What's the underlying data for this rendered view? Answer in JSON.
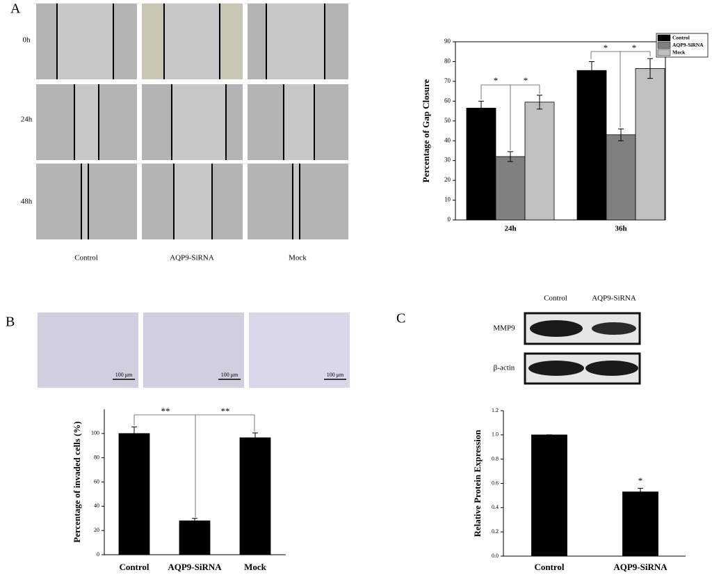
{
  "panel_labels": [
    "A",
    "B",
    "C"
  ],
  "wound_healing": {
    "time_labels": [
      "0h",
      "24h",
      "48h"
    ],
    "group_labels": [
      "Control",
      "AQP9-SiRNA",
      "Mock"
    ]
  },
  "transwell": {
    "scale_bars": [
      "100 μm",
      "100 μm",
      "100 μm"
    ]
  },
  "western_blot": {
    "lanes": [
      "Control",
      "AQP9-SiRNA"
    ],
    "bands": [
      "MMP9",
      "β-actin"
    ]
  },
  "chart_data": [
    {
      "type": "bar",
      "y_label": "Percentage of Gap Closure",
      "categories": [
        "24h",
        "36h"
      ],
      "series": [
        {
          "name": "Control",
          "color": "#000000",
          "values": [
            56.5,
            75.5
          ],
          "errors": [
            3.5,
            4.5
          ]
        },
        {
          "name": "AQP9-SiRNA",
          "color": "#808080",
          "values": [
            32,
            43
          ],
          "errors": [
            2.5,
            3
          ]
        },
        {
          "name": "Mock",
          "color": "#c0c0c0",
          "values": [
            59.5,
            76.5
          ],
          "errors": [
            3.5,
            5
          ]
        }
      ],
      "ylim": [
        0,
        90
      ],
      "yticks": [
        0,
        10,
        20,
        30,
        40,
        50,
        60,
        70,
        80,
        90
      ],
      "legend": "top-right",
      "annotations": [
        "*",
        "*",
        "*",
        "*"
      ]
    },
    {
      "type": "bar",
      "y_label": "Percentage of invaded cells (%)",
      "categories": [
        "Control",
        "AQP9-SiRNA",
        "Mock"
      ],
      "values": [
        100,
        28,
        96.5
      ],
      "errors": [
        5.5,
        2,
        4
      ],
      "color": "#000000",
      "ylim": [
        0,
        120
      ],
      "yticks": [
        0,
        20,
        40,
        60,
        80,
        100
      ],
      "annotations": [
        "**",
        "**"
      ]
    },
    {
      "type": "bar",
      "y_label": "Relative Protein Expression",
      "categories": [
        "Control",
        "AQP9-SiRNA"
      ],
      "values": [
        1.0,
        0.53
      ],
      "errors": [
        0,
        0.03
      ],
      "color": "#000000",
      "ylim": [
        0,
        1.2
      ],
      "yticks": [
        {
          "value": 0,
          "label": "0.0"
        },
        0.2,
        0.4,
        0.6,
        0.8,
        {
          "value": 1,
          "label": "1.0"
        },
        1.2
      ],
      "annotations": [
        "*"
      ]
    }
  ]
}
